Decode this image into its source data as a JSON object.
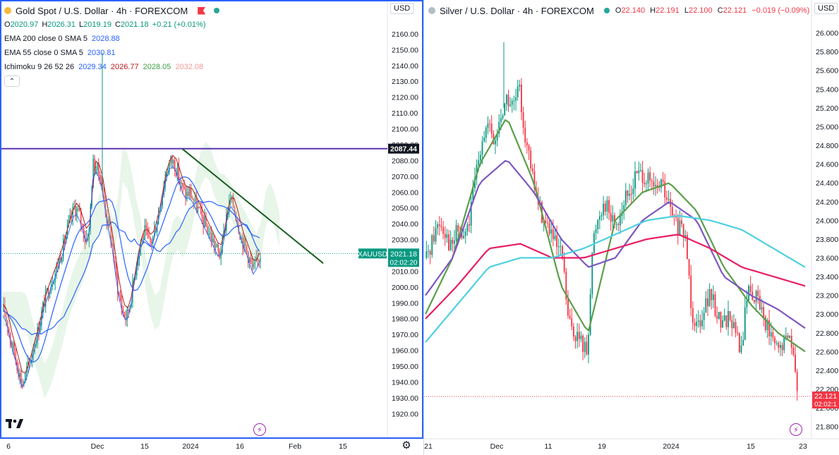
{
  "gold": {
    "title": "Gold Spot / U.S. Dollar · 4h · FOREXCOM",
    "ohlc": {
      "o_k": "O",
      "o": "2020.97",
      "h_k": "H",
      "h": "2026.31",
      "l_k": "L",
      "l": "2019.19",
      "c_k": "C",
      "c": "2021.18",
      "change": "+0.21 (+0.01%)"
    },
    "indicators": [
      {
        "label": "EMA 200 close 0 SMA 5",
        "values": [
          "2028.88"
        ],
        "colors": [
          "#2962ff"
        ]
      },
      {
        "label": "EMA 55 close 0 SMA 5",
        "values": [
          "2030.81"
        ],
        "colors": [
          "#2962ff"
        ]
      },
      {
        "label": "Ichimoku 9 26 52 26",
        "values": [
          "2029.34",
          "2026.77",
          "2028.05",
          "2032.08"
        ],
        "colors": [
          "#2962ff",
          "#b71c1c",
          "#43a047",
          "#ef9a9a"
        ]
      }
    ],
    "collapse_icon": "chevron-up-icon",
    "currency": "USD",
    "price_label": "2087.44",
    "symbol_tag": "XAUUSD",
    "last_price": "2021.18",
    "countdown": "02:02:20",
    "x_ticks": [
      "6",
      "Dec",
      "15",
      "2024",
      "16",
      "Feb",
      "15"
    ],
    "logo": "tv-logo",
    "settings_icon": "gear-icon",
    "colors": {
      "up": "#089981",
      "down": "#f23645",
      "hline": "#5b34b3",
      "trend": "#1b5e20"
    }
  },
  "silver": {
    "title": "Silver / U.S. Dollar · 4h · FOREXCOM",
    "ohlc": {
      "o_k": "O",
      "o": "22.140",
      "h_k": "H",
      "h": "22.191",
      "l_k": "L",
      "l": "22.100",
      "c_k": "C",
      "c": "22.121",
      "change": "−0.019 (−0.09%)"
    },
    "currency": "USD",
    "last_price": "22.121",
    "countdown": "02:02:1",
    "x_ticks": [
      "21",
      "Dec",
      "11",
      "19",
      "2024",
      "15",
      "23"
    ],
    "colors": {
      "ema_fast": "#5b9e4a",
      "ema_mid": "#7e57c2",
      "ema_slow": "#e91e63",
      "ema_long": "#4dd0e1"
    }
  },
  "chart_data": [
    {
      "type": "candlestick",
      "title": "Gold Spot / U.S. Dollar · 4h · FOREXCOM",
      "ylim": [
        1915,
        2168
      ],
      "y_ticks": [
        1920,
        1930,
        1940,
        1950,
        1960,
        1970,
        1980,
        1990,
        2000,
        2010,
        2020,
        2030,
        2040,
        2050,
        2060,
        2070,
        2080,
        2090,
        2100,
        2110,
        2120,
        2130,
        2140,
        2150,
        2160
      ],
      "close_path": [
        1985,
        1978,
        1965,
        1958,
        1948,
        1938,
        1945,
        1952,
        1962,
        1970,
        1980,
        1992,
        1998,
        2005,
        2010,
        2018,
        2025,
        2035,
        2042,
        2050,
        2048,
        2040,
        2030,
        2035,
        2078,
        2075,
        2070,
        2055,
        2040,
        2030,
        2010,
        1995,
        1985,
        1980,
        1990,
        2005,
        2020,
        2030,
        2035,
        2028,
        2030,
        2040,
        2050,
        2065,
        2075,
        2080,
        2078,
        2070,
        2062,
        2058,
        2060,
        2055,
        2050,
        2045,
        2040,
        2035,
        2030,
        2025,
        2020,
        2030,
        2048,
        2055,
        2050,
        2040,
        2030,
        2025,
        2018,
        2010,
        2015,
        2021.18
      ],
      "horizontal_level": 2087.44,
      "trend_line": [
        {
          "x": 0.43,
          "y": 2087.44
        },
        {
          "x": 0.76,
          "y": 2015
        }
      ],
      "last_price": 2021.18
    },
    {
      "type": "candlestick",
      "title": "Silver / U.S. Dollar · 4h · FOREXCOM",
      "ylim": [
        21.7,
        26.2
      ],
      "y_ticks": [
        21.8,
        22.0,
        22.2,
        22.4,
        22.6,
        22.8,
        23.0,
        23.2,
        23.4,
        23.6,
        23.8,
        24.0,
        24.2,
        24.4,
        24.6,
        24.8,
        25.0,
        25.2,
        25.4,
        25.6,
        25.8,
        26.0
      ],
      "close_path": [
        23.6,
        23.8,
        24.0,
        23.9,
        23.7,
        23.9,
        23.8,
        24.0,
        24.5,
        24.9,
        25.0,
        24.8,
        25.1,
        25.3,
        25.2,
        25.4,
        24.9,
        24.5,
        24.2,
        24.0,
        23.9,
        23.7,
        23.6,
        22.9,
        22.8,
        22.7,
        22.6,
        23.8,
        24.1,
        24.2,
        24.0,
        24.0,
        24.2,
        24.3,
        24.5,
        24.5,
        24.4,
        24.3,
        24.4,
        24.2,
        24.0,
        23.9,
        23.8,
        23.0,
        22.9,
        23.1,
        23.2,
        23.0,
        22.9,
        23.0,
        22.8,
        22.6,
        23.3,
        23.2,
        23.1,
        22.9,
        22.7,
        22.6,
        22.7,
        22.8,
        22.121
      ],
      "series": [
        {
          "values": [
            23.0,
            23.6,
            24.6,
            25.1,
            24.4,
            23.3,
            22.8,
            24.0,
            24.3,
            24.4,
            24.1,
            23.5,
            23.1,
            22.8,
            22.6
          ]
        },
        {
          "values": [
            23.2,
            23.6,
            24.4,
            24.65,
            24.3,
            23.8,
            23.5,
            23.6,
            24.0,
            24.2,
            24.0,
            23.4,
            23.2,
            23.05,
            22.85
          ]
        },
        {
          "values": [
            22.95,
            23.3,
            23.7,
            23.75,
            23.6,
            23.6,
            23.7,
            23.8,
            23.85,
            23.7,
            23.5,
            23.4,
            23.3
          ]
        },
        {
          "values": [
            22.7,
            23.1,
            23.5,
            23.6,
            23.6,
            23.7,
            23.85,
            24.0,
            24.05,
            24.0,
            23.9,
            23.7,
            23.5
          ]
        }
      ],
      "last_price": 22.121
    }
  ]
}
